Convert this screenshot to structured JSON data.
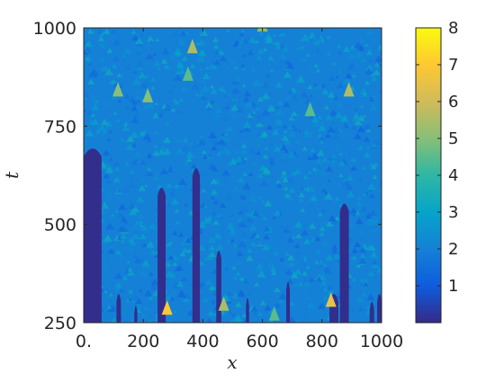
{
  "chart_data": {
    "type": "heatmap",
    "title": "",
    "xlabel": "x",
    "ylabel": "t",
    "xlim": [
      0,
      1000
    ],
    "ylim": [
      250,
      1000
    ],
    "clim": [
      0,
      8
    ],
    "colormap": "parula",
    "x_ticks": [
      {
        "value": 0,
        "label": "0."
      },
      {
        "value": 200,
        "label": "200"
      },
      {
        "value": 400,
        "label": "400"
      },
      {
        "value": 600,
        "label": "600"
      },
      {
        "value": 800,
        "label": "800"
      },
      {
        "value": 1000,
        "label": "1000"
      }
    ],
    "y_ticks": [
      {
        "value": 250,
        "label": "250"
      },
      {
        "value": 500,
        "label": "500"
      },
      {
        "value": 750,
        "label": "750"
      },
      {
        "value": 1000,
        "label": "1000"
      }
    ],
    "colorbar_ticks": [
      {
        "value": 1,
        "label": "1"
      },
      {
        "value": 2,
        "label": "2"
      },
      {
        "value": 3,
        "label": "3"
      },
      {
        "value": 4,
        "label": "4"
      },
      {
        "value": 5,
        "label": "5"
      },
      {
        "value": 6,
        "label": "6"
      },
      {
        "value": 7,
        "label": "7"
      },
      {
        "value": 8,
        "label": "8"
      }
    ],
    "background_level": 2,
    "laminar_regions": [
      {
        "x": [
          0,
          60
        ],
        "t": [
          250,
          700
        ]
      },
      {
        "x": [
          110,
          125
        ],
        "t": [
          250,
          330
        ]
      },
      {
        "x": [
          170,
          180
        ],
        "t": [
          250,
          300
        ]
      },
      {
        "x": [
          248,
          275
        ],
        "t": [
          250,
          600
        ]
      },
      {
        "x": [
          365,
          390
        ],
        "t": [
          250,
          650
        ]
      },
      {
        "x": [
          445,
          462
        ],
        "t": [
          250,
          440
        ]
      },
      {
        "x": [
          545,
          555
        ],
        "t": [
          250,
          320
        ]
      },
      {
        "x": [
          680,
          692
        ],
        "t": [
          250,
          360
        ]
      },
      {
        "x": [
          825,
          855
        ],
        "t": [
          250,
          330
        ]
      },
      {
        "x": [
          860,
          890
        ],
        "t": [
          250,
          560
        ]
      },
      {
        "x": [
          960,
          975
        ],
        "t": [
          250,
          310
        ]
      },
      {
        "x": [
          985,
          1000
        ],
        "t": [
          250,
          330
        ]
      }
    ],
    "peaks": [
      {
        "x": 280,
        "t": 275,
        "value": 7
      },
      {
        "x": 365,
        "t": 940,
        "value": 5.5
      },
      {
        "x": 830,
        "t": 295,
        "value": 6.5
      },
      {
        "x": 890,
        "t": 830,
        "value": 5.5
      },
      {
        "x": 115,
        "t": 830,
        "value": 5
      },
      {
        "x": 215,
        "t": 815,
        "value": 5
      },
      {
        "x": 350,
        "t": 870,
        "value": 4.5
      },
      {
        "x": 600,
        "t": 995,
        "value": 5
      },
      {
        "x": 760,
        "t": 780,
        "value": 4.5
      },
      {
        "x": 470,
        "t": 285,
        "value": 5.5
      },
      {
        "x": 640,
        "t": 260,
        "value": 4.5
      }
    ]
  }
}
